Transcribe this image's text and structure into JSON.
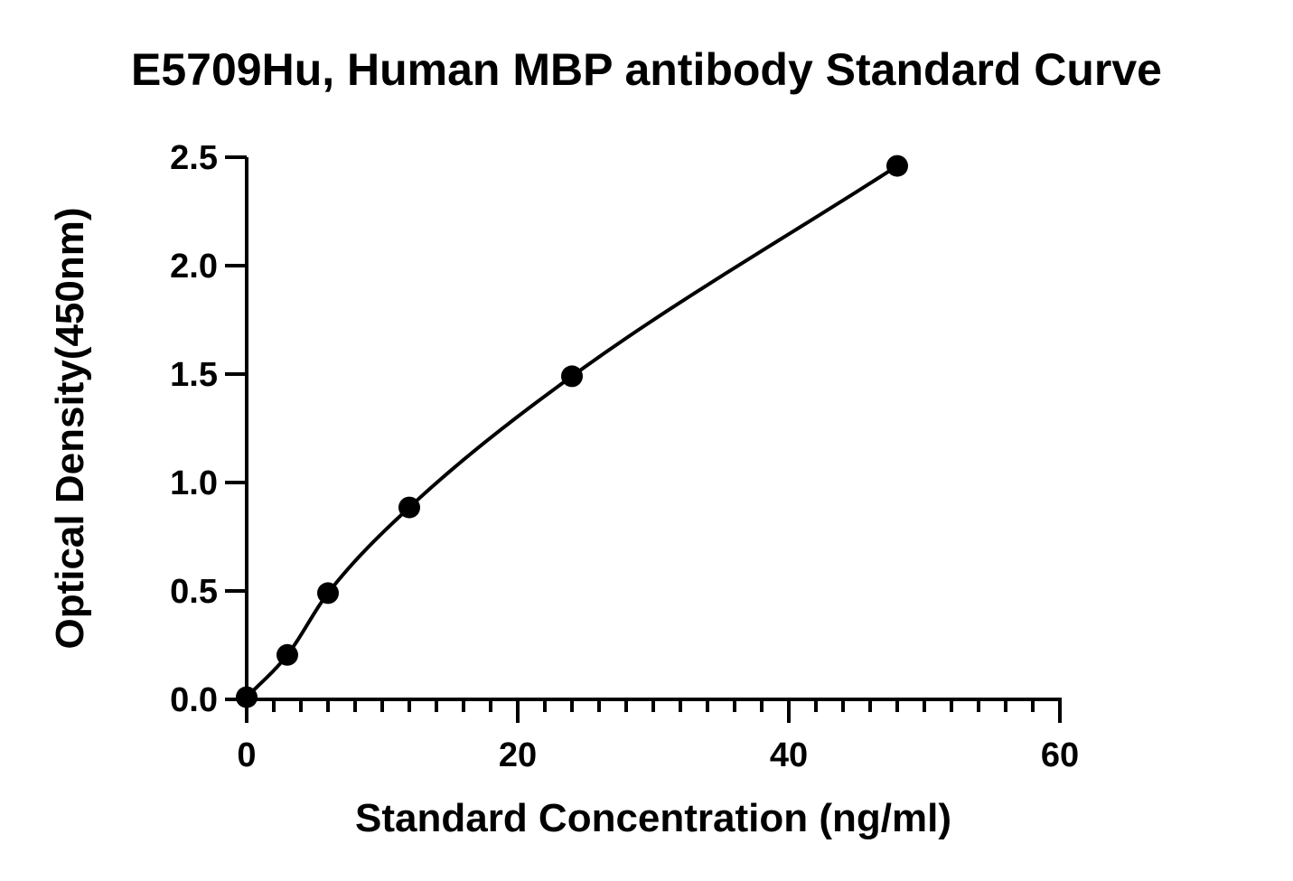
{
  "chart_data": {
    "type": "scatter",
    "title": "E5709Hu, Human MBP antibody Standard Curve",
    "xlabel": "Standard Concentration (ng/ml)",
    "ylabel": "Optical Density(450nm)",
    "xlim": [
      0,
      60
    ],
    "ylim": [
      0,
      2.5
    ],
    "x_ticks": [
      "0",
      "20",
      "40",
      "60"
    ],
    "y_ticks": [
      "0.0",
      "0.5",
      "1.0",
      "1.5",
      "2.0",
      "2.5"
    ],
    "x_minor_step": 2,
    "grid": false,
    "legend": "none",
    "fit_curve": true,
    "series": [
      {
        "x": [
          0,
          3,
          6,
          12,
          24,
          48
        ],
        "y": [
          0.01,
          0.205,
          0.49,
          0.885,
          1.49,
          2.46
        ]
      }
    ],
    "colors": {
      "line": "#000000",
      "marker": "#000000"
    }
  }
}
